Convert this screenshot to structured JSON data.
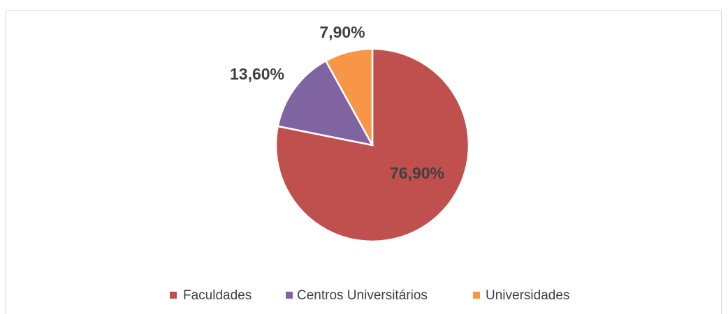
{
  "chart_data": {
    "type": "pie",
    "categories": [
      "Faculdades",
      "Centros Universitários",
      "Universidades"
    ],
    "values": [
      76.9,
      13.6,
      7.9
    ],
    "value_labels": [
      "76,90%",
      "13,60%",
      "7,90%"
    ],
    "colors": [
      "#c0504d",
      "#8064a2",
      "#f79646"
    ],
    "legend": "bottom"
  }
}
